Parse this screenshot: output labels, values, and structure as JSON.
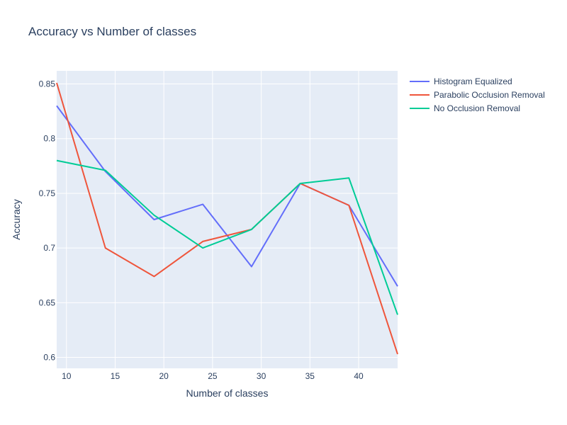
{
  "chart_data": {
    "type": "line",
    "title": "Accuracy vs Number of classes",
    "xlabel": "Number of classes",
    "ylabel": "Accuracy",
    "x": [
      9,
      14,
      19,
      24,
      29,
      34,
      39,
      44
    ],
    "xlim": [
      9,
      44
    ],
    "ylim": [
      0.59,
      0.862
    ],
    "xticks": [
      10,
      15,
      20,
      25,
      30,
      35,
      40
    ],
    "yticks": [
      0.6,
      0.65,
      0.7,
      0.75,
      0.8,
      0.85
    ],
    "ytick_labels": [
      "0.6",
      "0.65",
      "0.7",
      "0.75",
      "0.8",
      "0.85"
    ],
    "grid": true,
    "legend_position": "top-right",
    "series": [
      {
        "name": "Histogram Equalized",
        "color": "#636efa",
        "values": [
          0.83,
          0.77,
          0.726,
          0.74,
          0.683,
          0.759,
          0.739,
          0.665
        ]
      },
      {
        "name": "Parabolic Occlusion Removal",
        "color": "#ef553b",
        "values": [
          0.851,
          0.7,
          0.674,
          0.706,
          0.717,
          0.759,
          0.739,
          0.603
        ]
      },
      {
        "name": "No Occlusion Removal",
        "color": "#00cc96",
        "values": [
          0.78,
          0.771,
          0.73,
          0.7,
          0.717,
          0.759,
          0.764,
          0.639
        ]
      }
    ]
  }
}
